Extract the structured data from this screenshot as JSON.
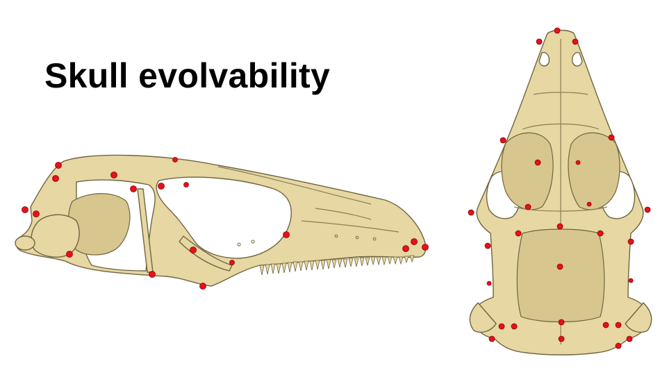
{
  "slide": {
    "title": "Skull evolvability",
    "accent_color": "#e8101a",
    "bone_color": "#e6d7a3"
  },
  "figures": {
    "lateral": {
      "icon": "lizard-skull-lateral-view"
    },
    "dorsal": {
      "icon": "lizard-skull-dorsal-view"
    }
  }
}
